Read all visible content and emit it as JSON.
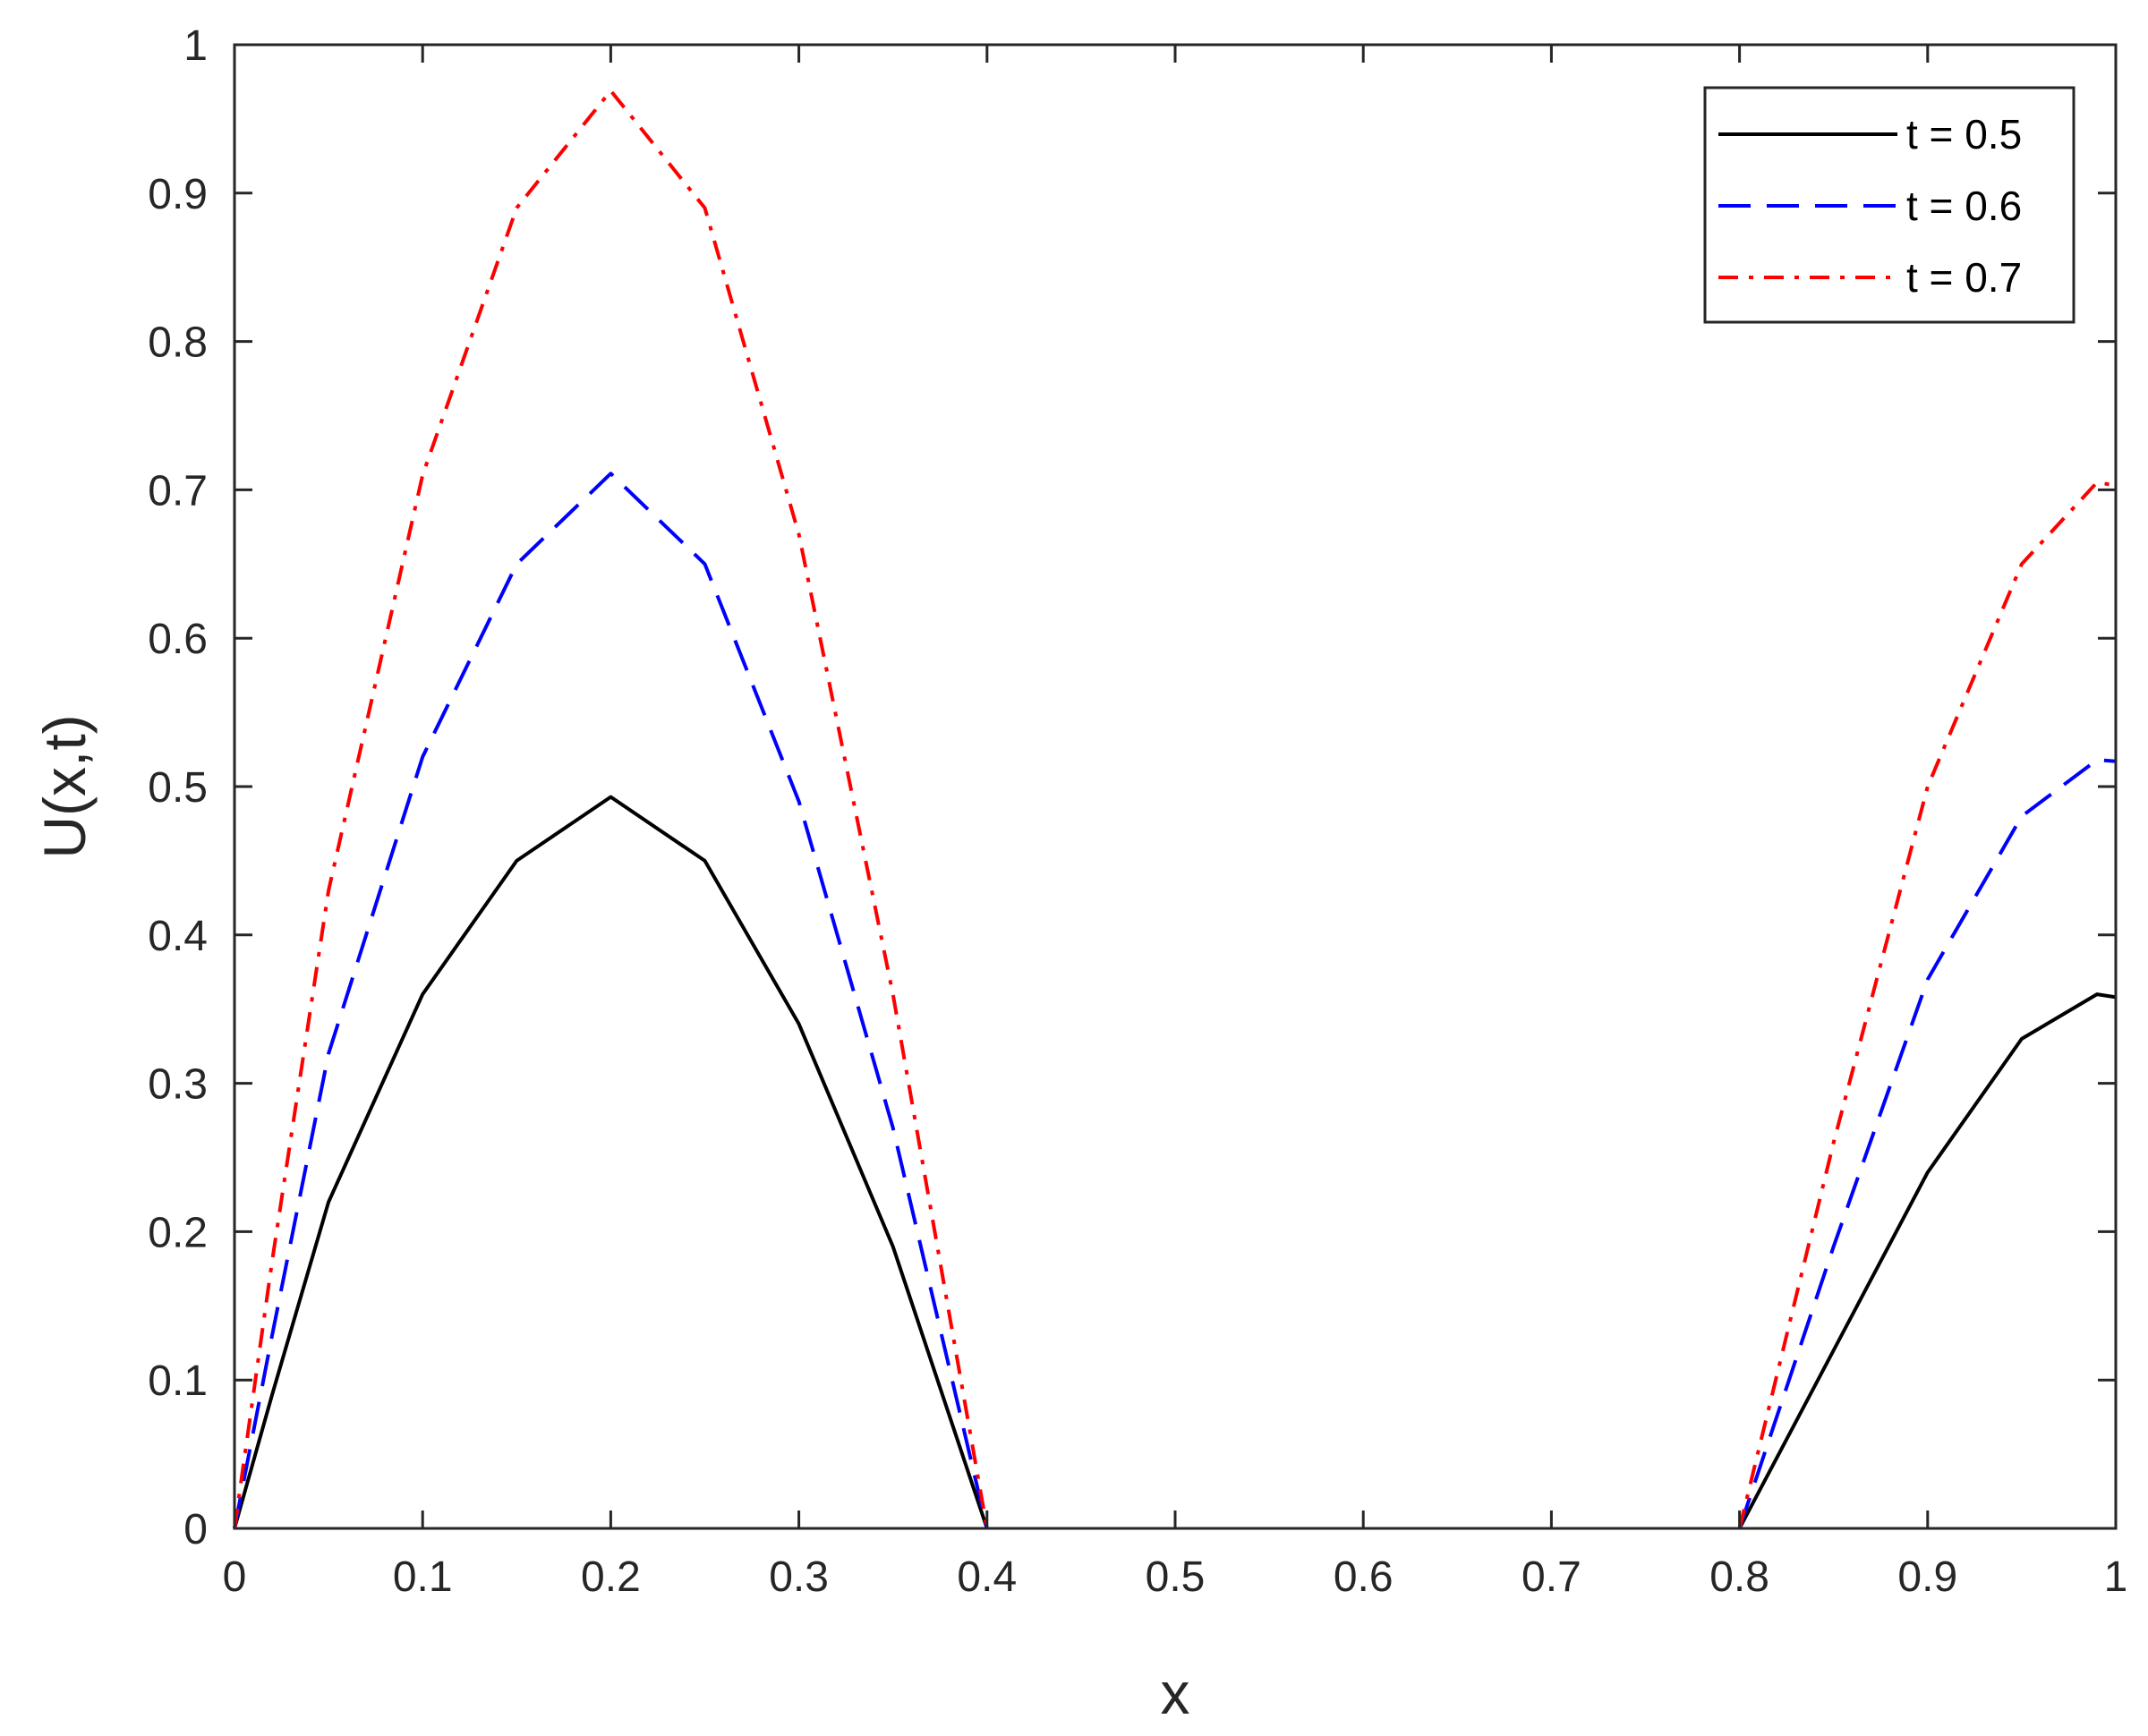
{
  "chart_data": {
    "type": "line",
    "xlabel": "x",
    "ylabel": "U(x,t)",
    "xlim": [
      0,
      1
    ],
    "ylim": [
      0,
      1
    ],
    "xticks": [
      "0",
      "0.1",
      "0.2",
      "0.3",
      "0.4",
      "0.5",
      "0.6",
      "0.7",
      "0.8",
      "0.9",
      "1"
    ],
    "yticks": [
      "0",
      "0.1",
      "0.2",
      "0.3",
      "0.4",
      "0.5",
      "0.6",
      "0.7",
      "0.8",
      "0.9",
      "1"
    ],
    "grid": false,
    "legend_position": "top-right",
    "series": [
      {
        "name": "t = 0.5",
        "color": "#000000",
        "dash": "solid",
        "segments": [
          [
            [
              0,
              0
            ],
            [
              0.02,
              0.09
            ],
            [
              0.05,
              0.22
            ],
            [
              0.1,
              0.36
            ],
            [
              0.15,
              0.45
            ],
            [
              0.2,
              0.493
            ],
            [
              0.25,
              0.45
            ],
            [
              0.3,
              0.34
            ],
            [
              0.35,
              0.19
            ],
            [
              0.4,
              0.0
            ]
          ],
          [
            [
              0.8,
              0.0
            ],
            [
              0.85,
              0.12
            ],
            [
              0.9,
              0.24
            ],
            [
              0.95,
              0.33
            ],
            [
              0.99,
              0.36
            ],
            [
              1.0,
              0.358
            ]
          ]
        ]
      },
      {
        "name": "t = 0.6",
        "color": "#0000ff",
        "dash": "dashed",
        "segments": [
          [
            [
              0,
              0
            ],
            [
              0.02,
              0.13
            ],
            [
              0.05,
              0.32
            ],
            [
              0.1,
              0.52
            ],
            [
              0.15,
              0.65
            ],
            [
              0.2,
              0.711
            ],
            [
              0.25,
              0.65
            ],
            [
              0.3,
              0.49
            ],
            [
              0.35,
              0.27
            ],
            [
              0.4,
              0.0
            ]
          ],
          [
            [
              0.8,
              0.0
            ],
            [
              0.85,
              0.19
            ],
            [
              0.9,
              0.37
            ],
            [
              0.95,
              0.48
            ],
            [
              0.99,
              0.518
            ],
            [
              1.0,
              0.517
            ]
          ]
        ]
      },
      {
        "name": "t = 0.7",
        "color": "#ff0000",
        "dash": "dashdot",
        "segments": [
          [
            [
              0,
              0
            ],
            [
              0.02,
              0.18
            ],
            [
              0.05,
              0.43
            ],
            [
              0.1,
              0.71
            ],
            [
              0.15,
              0.89
            ],
            [
              0.2,
              0.969
            ],
            [
              0.25,
              0.89
            ],
            [
              0.3,
              0.67
            ],
            [
              0.35,
              0.36
            ],
            [
              0.4,
              0.0
            ]
          ],
          [
            [
              0.8,
              0.0
            ],
            [
              0.85,
              0.26
            ],
            [
              0.9,
              0.5
            ],
            [
              0.95,
              0.65
            ],
            [
              0.99,
              0.705
            ],
            [
              1.0,
              0.703
            ]
          ]
        ]
      }
    ]
  }
}
